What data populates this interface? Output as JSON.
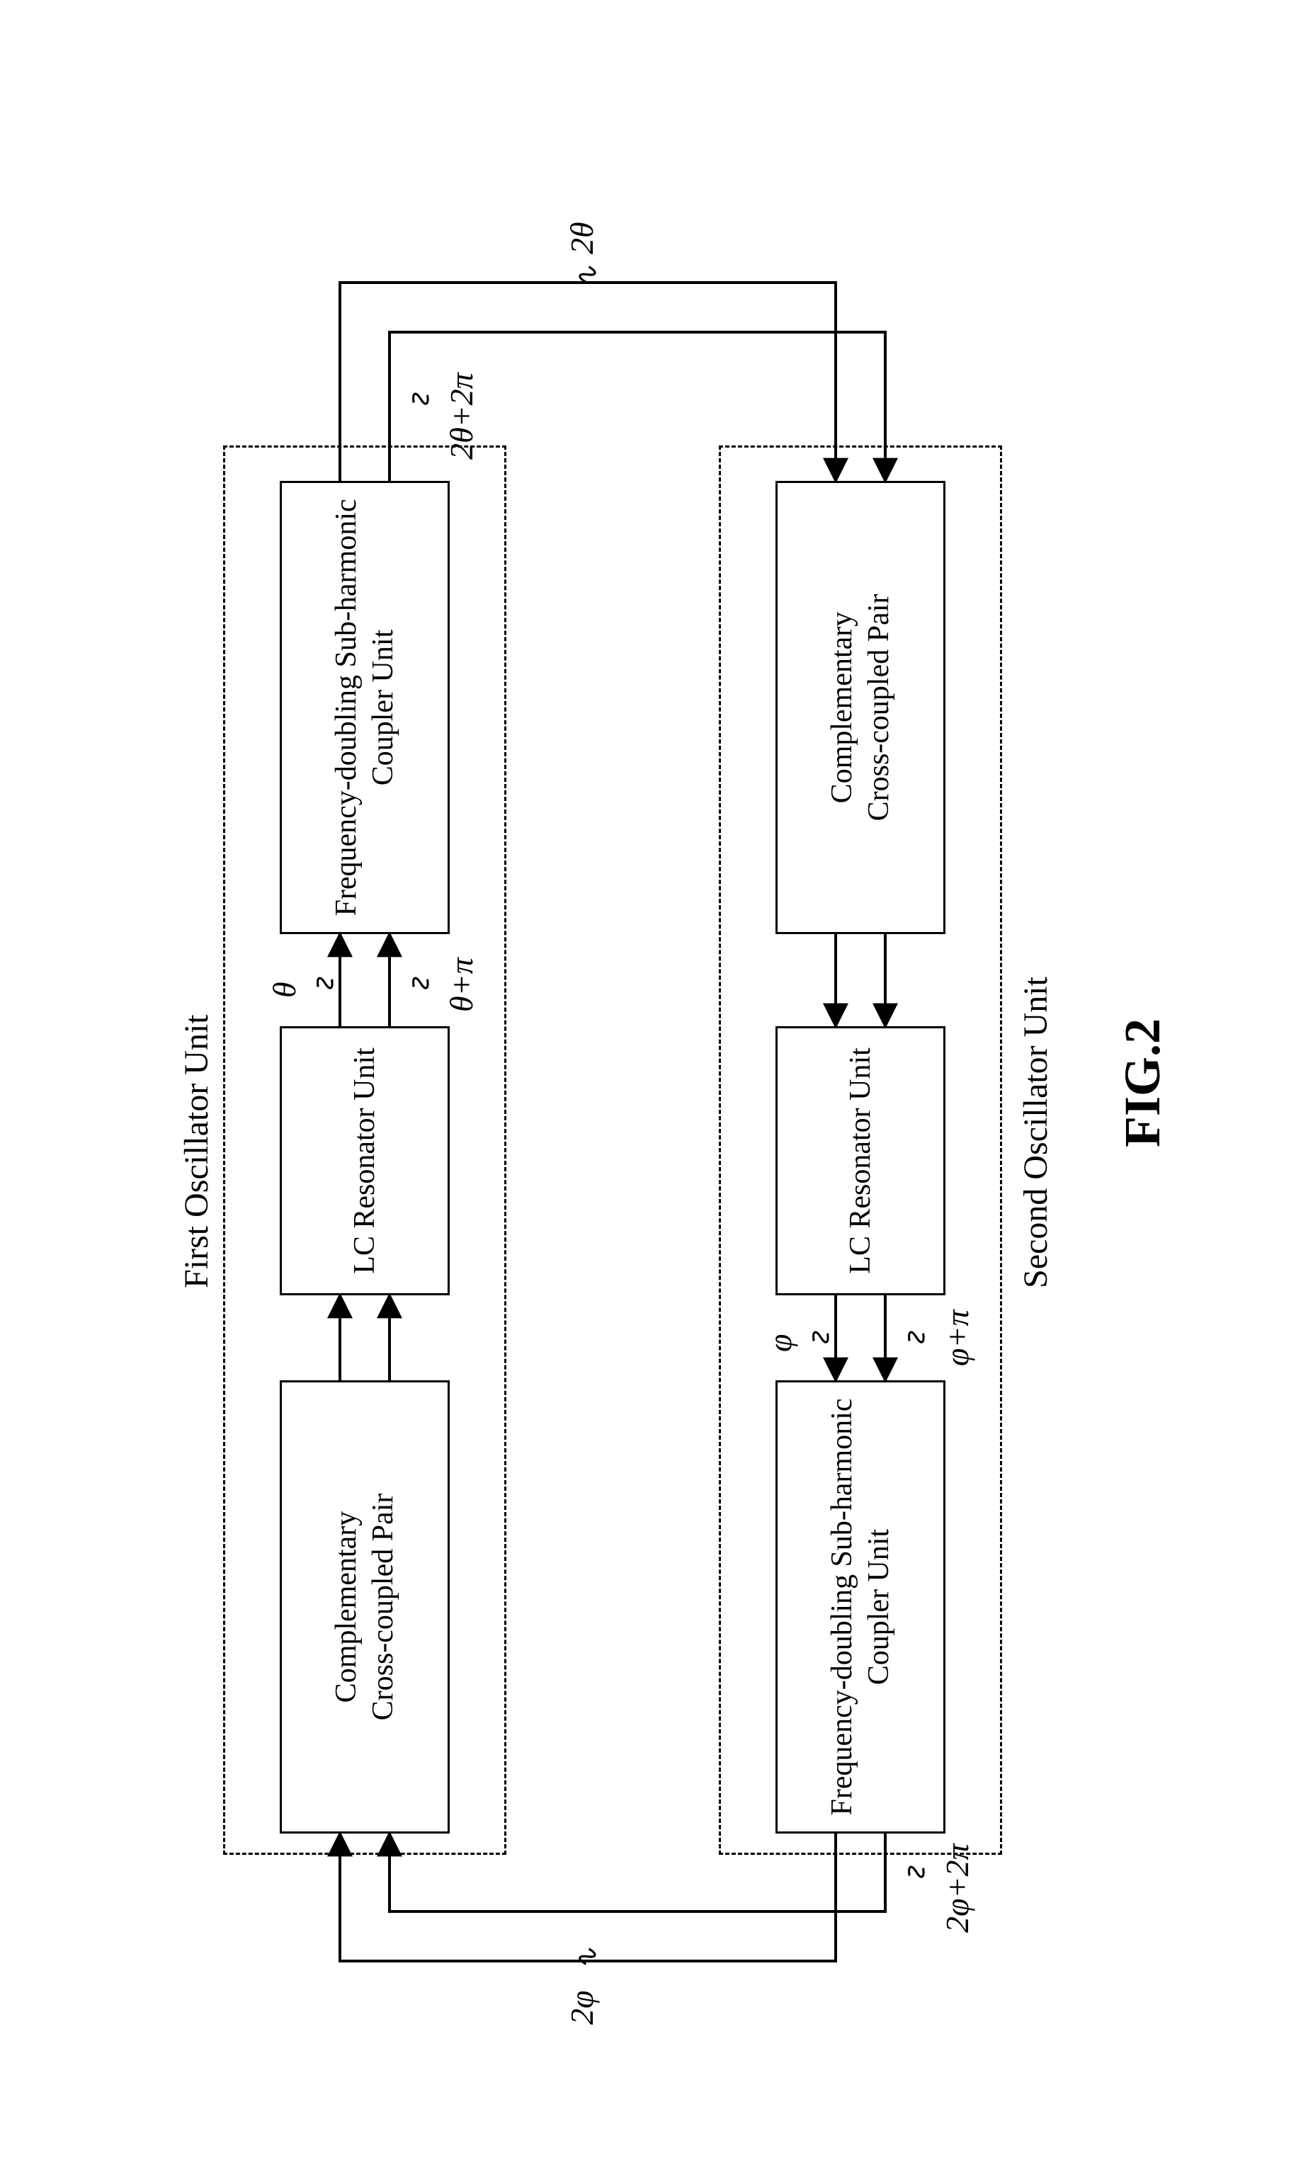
{
  "figure_label": "FIG.2",
  "unit1": {
    "label": "First Oscillator Unit"
  },
  "unit2": {
    "label": "Second Oscillator Unit"
  },
  "blocks": {
    "ccp1": "Complementary\nCross-coupled Pair",
    "lc1": "LC Resonator Unit",
    "freq1": "Frequency-doubling Sub-harmonic\nCoupler Unit",
    "ccp2": "Complementary\nCross-coupled Pair",
    "lc2": "LC Resonator Unit",
    "freq2": "Frequency-doubling Sub-harmonic\nCoupler Unit"
  },
  "signals": {
    "theta": "θ",
    "theta_pi": "θ+π",
    "two_theta": "2θ",
    "two_theta_2pi": "2θ+2π",
    "phi": "φ",
    "phi_pi": "φ+π",
    "two_phi": "2φ",
    "two_phi_2pi": "2φ+2π"
  },
  "style": {
    "stroke": "#000000",
    "stroke_width": 4,
    "arrow_size": 18
  }
}
